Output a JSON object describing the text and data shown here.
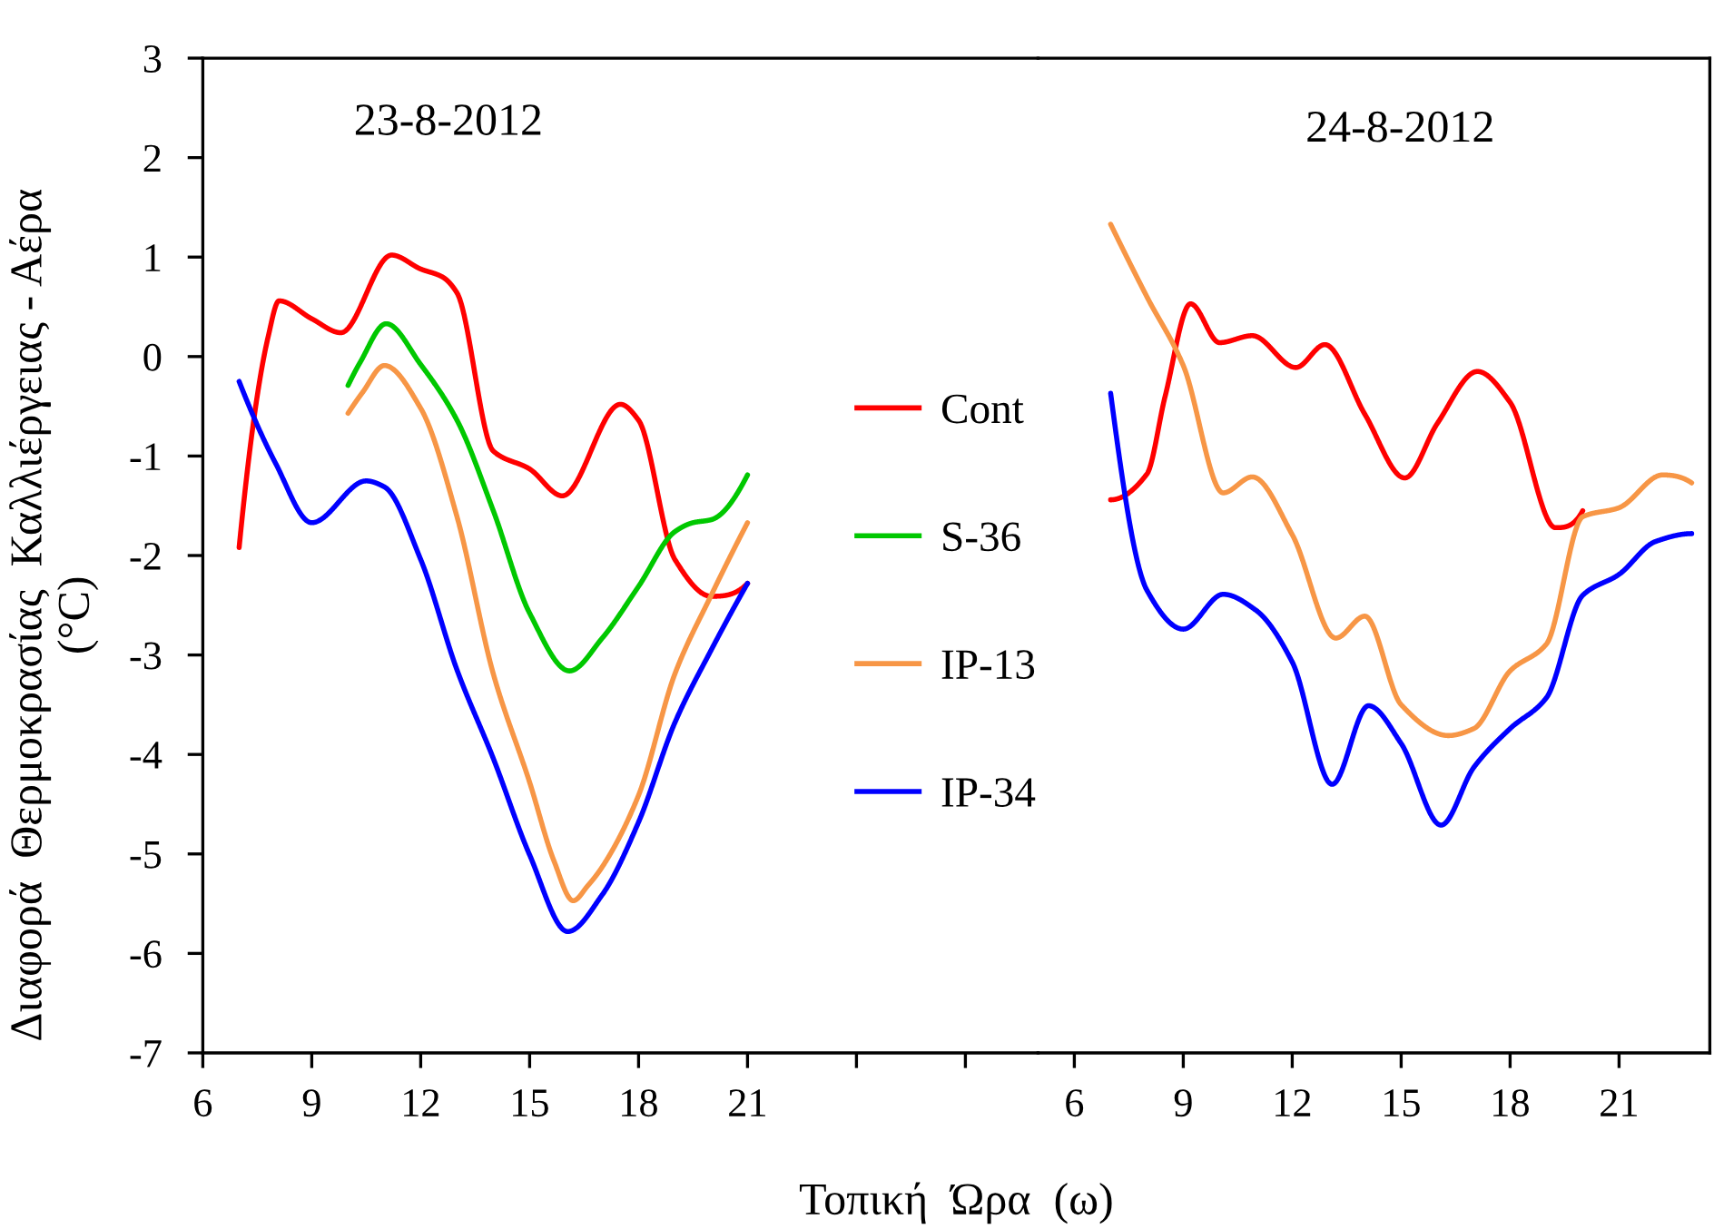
{
  "chart_data": [
    {
      "type": "line",
      "annotations": [
        "23-8-2012"
      ],
      "xlabel": "Τοπική  Ώρα  (ω)",
      "ylabel": "Διαφορά  Θερμοκρασίας  Καλλιέργειας - Αέρα\n(°C)",
      "xlim": [
        6,
        29
      ],
      "xticks": [
        6,
        9,
        12,
        15,
        18,
        21,
        {
          "value": 24,
          "label": null
        },
        {
          "value": 27,
          "label": null
        }
      ],
      "ylim": [
        -7,
        3
      ],
      "yticks": [
        -7,
        -6,
        -5,
        -4,
        -3,
        -2,
        -1,
        0,
        1,
        2,
        3
      ],
      "legend": "right",
      "line_style": "solid",
      "series": [
        {
          "name": "Cont",
          "color": "#ff0000",
          "x": [
            7,
            7.8,
            8.1,
            9,
            9.8,
            11.2,
            12,
            12.6,
            13,
            14,
            15,
            15.9,
            17.5,
            18,
            19,
            20,
            21
          ],
          "values": [
            -1.92,
            0.2,
            0.56,
            0.38,
            0.24,
            1.02,
            0.88,
            0.8,
            0.64,
            -0.95,
            -1.13,
            -1.4,
            -0.48,
            -0.64,
            -2.04,
            -2.41,
            -2.28
          ]
        },
        {
          "name": "S-36",
          "color": "#00c800",
          "x": [
            10,
            10.33,
            11.05,
            12,
            13,
            14,
            15,
            16.1,
            17,
            18,
            19,
            19.5,
            20,
            21
          ],
          "values": [
            -0.29,
            -0.06,
            0.33,
            -0.08,
            -0.64,
            -1.55,
            -2.58,
            -3.16,
            -2.83,
            -2.31,
            -1.76,
            -1.67,
            -1.64,
            -1.19
          ]
        },
        {
          "name": "IP-13",
          "color": "#f79646",
          "x": [
            10,
            10.4,
            11,
            12,
            13,
            14,
            15,
            15.67,
            16.2,
            16.6,
            17,
            18,
            19,
            20,
            21
          ],
          "values": [
            -0.57,
            -0.36,
            -0.09,
            -0.52,
            -1.61,
            -3.19,
            -4.28,
            -5.07,
            -5.47,
            -5.32,
            -5.13,
            -4.41,
            -3.19,
            -2.4,
            -1.67
          ]
        },
        {
          "name": "IP-34",
          "color": "#0000ff",
          "x": [
            7,
            8,
            9,
            10.5,
            11,
            12,
            13,
            14,
            15,
            16.05,
            17,
            18,
            19,
            20,
            21
          ],
          "values": [
            -0.25,
            -1.07,
            -1.67,
            -1.25,
            -1.31,
            -2.04,
            -3.15,
            -4.04,
            -5.01,
            -5.78,
            -5.41,
            -4.68,
            -3.68,
            -2.95,
            -2.28
          ]
        }
      ]
    },
    {
      "type": "line",
      "annotations": [
        "24-8-2012"
      ],
      "xlim": [
        5,
        23.5
      ],
      "xticks": [
        6,
        9,
        12,
        15,
        18,
        21
      ],
      "ylim": [
        -7,
        3
      ],
      "tick_labels": "x",
      "line_style": "solid",
      "series": [
        {
          "color": "#ff0000",
          "x": [
            7,
            8,
            8.5,
            9.2,
            10,
            10.9,
            12.1,
            12.9,
            14,
            15.1,
            16,
            17.1,
            18,
            19.25,
            20
          ],
          "values": [
            -1.44,
            -1.18,
            -0.4,
            0.53,
            0.14,
            0.21,
            -0.11,
            0.12,
            -0.58,
            -1.22,
            -0.67,
            -0.15,
            -0.46,
            -1.72,
            -1.55
          ]
        },
        {
          "color": "#f79646",
          "x": [
            7,
            8,
            9,
            10.1,
            10.9,
            12,
            13.2,
            14,
            15,
            16.3,
            17,
            18,
            19,
            20,
            21,
            22.2,
            23
          ],
          "values": [
            1.33,
            0.6,
            -0.09,
            -1.37,
            -1.21,
            -1.79,
            -2.83,
            -2.61,
            -3.5,
            -3.81,
            -3.74,
            -3.16,
            -2.89,
            -1.61,
            -1.52,
            -1.19,
            -1.27
          ]
        },
        {
          "color": "#0000ff",
          "x": [
            7,
            8,
            9,
            10.1,
            11,
            12,
            13.1,
            14.1,
            15,
            16.1,
            17,
            18,
            19,
            20,
            21,
            22,
            23
          ],
          "values": [
            -0.37,
            -2.35,
            -2.74,
            -2.39,
            -2.55,
            -3.07,
            -4.3,
            -3.51,
            -3.89,
            -4.71,
            -4.13,
            -3.74,
            -3.43,
            -2.4,
            -2.19,
            -1.86,
            -1.78
          ]
        }
      ]
    }
  ]
}
